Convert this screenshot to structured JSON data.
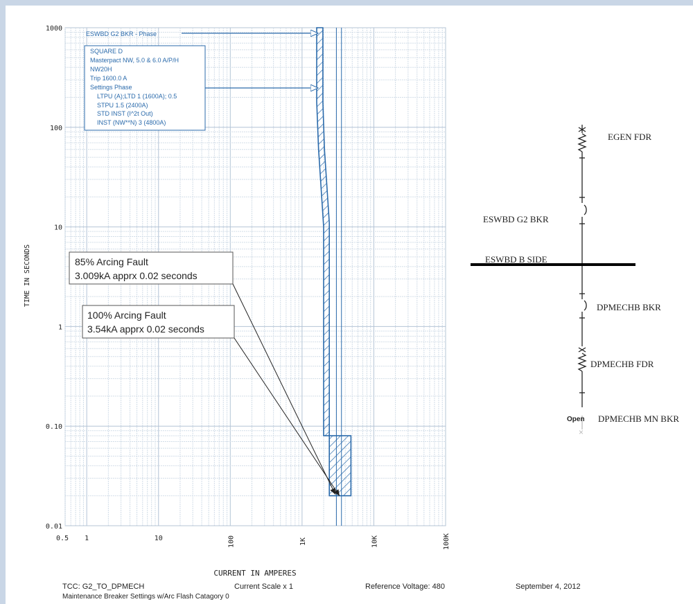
{
  "chart_data": {
    "type": "line",
    "title": "",
    "xlabel": "CURRENT IN AMPERES",
    "ylabel": "TIME IN SECONDS",
    "x_scale": "log",
    "y_scale": "log",
    "xlim": [
      0.5,
      100000
    ],
    "ylim": [
      0.01,
      1000
    ],
    "x_ticks": [
      "0.5",
      "1",
      "10",
      "100",
      "1K",
      "10K",
      "100K"
    ],
    "y_ticks": [
      "1000",
      "100",
      "10",
      "1",
      "0.10",
      "0.01"
    ],
    "grid": true,
    "series": [
      {
        "name": "ESWBD G2 BKR - Phase",
        "band_min": [
          [
            1600,
            1000
          ],
          [
            1600,
            180
          ],
          [
            1700,
            60
          ],
          [
            2000,
            10
          ],
          [
            2000,
            0.08
          ],
          [
            2400,
            0.08
          ],
          [
            2400,
            0.02
          ]
        ],
        "band_max": [
          [
            1950,
            1000
          ],
          [
            1950,
            180
          ],
          [
            2050,
            60
          ],
          [
            2400,
            11
          ],
          [
            2400,
            0.08
          ],
          [
            4800,
            0.08
          ],
          [
            4800,
            0.02
          ]
        ]
      }
    ],
    "reference_lines": [
      {
        "label": "85% Arcing Fault",
        "current_kA": 3.009,
        "time_s": 0.02
      },
      {
        "label": "100% Arcing Fault",
        "current_kA": 3.54,
        "time_s": 0.02
      }
    ]
  },
  "legend_box": {
    "device_label": "ESWBD G2 BKR - Phase",
    "lines": [
      "SQUARE D",
      "Masterpact NW, 5.0 & 6.0 A/P/H",
      "NW20H",
      "Trip 1600.0 A",
      "Settings Phase",
      "LTPU (A);LTD 1 (1600A); 0.5",
      "STPU 1.5 (2400A)",
      "STD INST (I^2t Out)",
      "INST (NW**N) 3 (4800A)"
    ]
  },
  "callouts": {
    "fault85": {
      "line1": "85% Arcing Fault",
      "line2": "3.009kA apprx 0.02 seconds"
    },
    "fault100": {
      "line1": "100% Arcing Fault",
      "line2": "3.54kA apprx 0.02 seconds"
    }
  },
  "one_line": {
    "nodes": [
      {
        "label": "EGEN FDR"
      },
      {
        "label": "ESWBD G2 BKR"
      },
      {
        "label": "ESWBD B SIDE"
      },
      {
        "label": "DPMECHB BKR"
      },
      {
        "label": "DPMECHB FDR"
      },
      {
        "label": "DPMECHB MN BKR"
      }
    ],
    "open_tag": "Open"
  },
  "footer": {
    "tcc": "TCC:  G2_TO_DPMECH",
    "scale": "Current Scale  x 1",
    "voltage": "Reference Voltage: 480",
    "date": "September 4, 2012",
    "note": "Maintenance Breaker Settings w/Arc Flash Catagory 0"
  },
  "colors": {
    "background": "#c9d6e6",
    "grid_minor": "#d2dde8",
    "grid_major": "#b4c4d6",
    "curve": "#2a6aab",
    "text": "#222222",
    "bus": "#000000"
  }
}
